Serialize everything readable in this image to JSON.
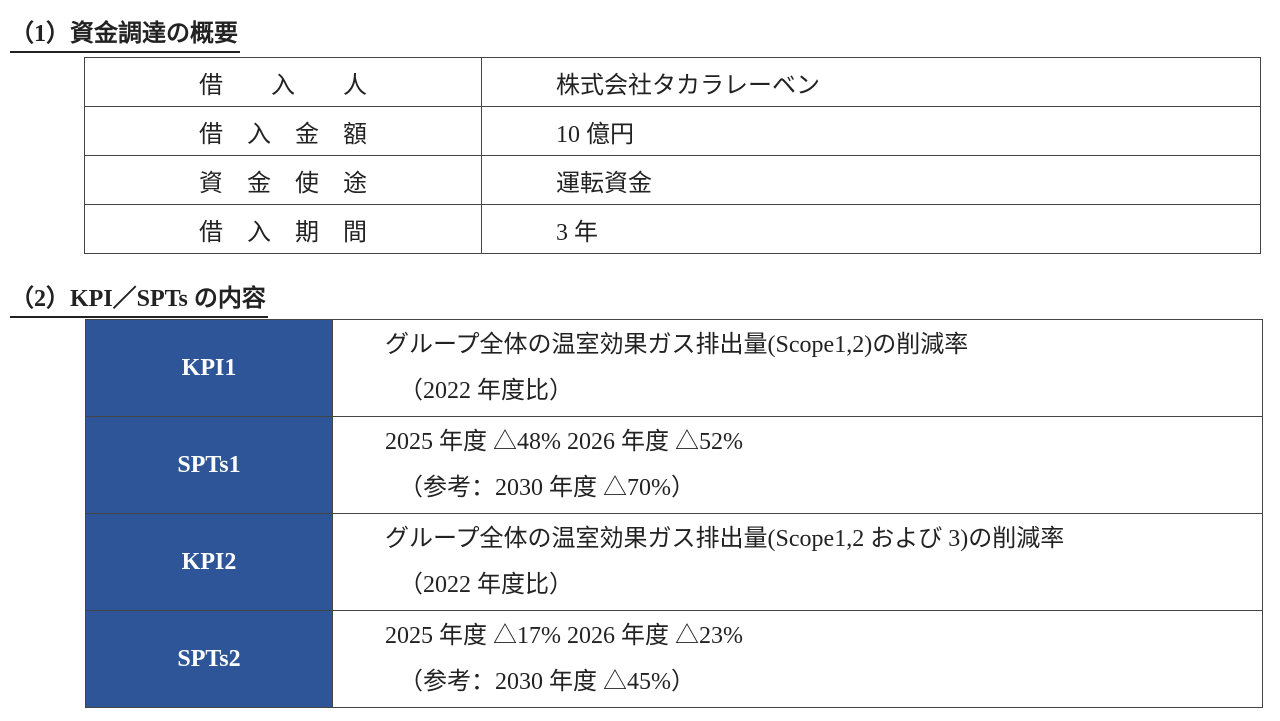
{
  "section1": {
    "title": "（1）資金調達の概要",
    "rows": [
      [
        "借　　入　　人",
        "株式会社タカラレーベン"
      ],
      [
        "借　入　金　額",
        "10 億円"
      ],
      [
        "資　金　使　途",
        "運転資金"
      ],
      [
        "借　入　期　間",
        "3 年"
      ]
    ]
  },
  "section2": {
    "title": "（2）KPI／SPTs の内容",
    "rows": [
      {
        "label": "KPI1",
        "lines": [
          "グループ全体の温室効果ガス排出量(Scope1,2)の削減率",
          "（2022 年度比）"
        ]
      },
      {
        "label": "SPTs1",
        "lines": [
          "2025 年度 △48% 2026 年度 △52%",
          "（参考：2030 年度 △70%）"
        ]
      },
      {
        "label": "KPI2",
        "lines": [
          "グループ全体の温室効果ガス排出量(Scope1,2 および 3)の削減率",
          "（2022 年度比）"
        ]
      },
      {
        "label": "SPTs2",
        "lines": [
          "2025 年度 △17% 2026 年度 △23%",
          "（参考：2030 年度 △45%）"
        ]
      }
    ]
  }
}
